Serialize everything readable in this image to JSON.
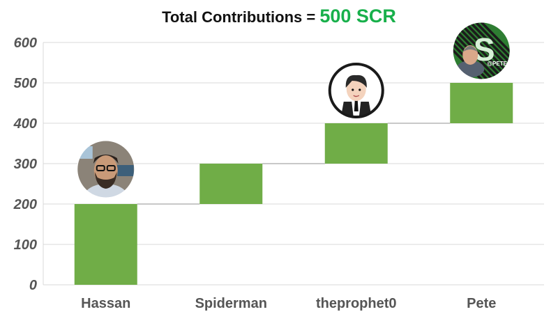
{
  "chart_data": {
    "type": "bar",
    "subtype": "waterfall",
    "title_prefix": "Total Contributions = ",
    "title_value": "500 SCR",
    "categories": [
      "Hassan",
      "Spiderman",
      "theprophet0",
      "Pete"
    ],
    "values": [
      200,
      100,
      100,
      100
    ],
    "ylim": [
      0,
      600
    ],
    "yticks": [
      0,
      100,
      200,
      300,
      400,
      500,
      600
    ],
    "grid": true,
    "colors": {
      "bar": "#70ad47",
      "grid": "#d9d9d9",
      "connector": "#a6a6a6",
      "accent": "#18b04b"
    },
    "avatars": [
      {
        "category": "Hassan",
        "icon": "bearded-man-with-glasses-avatar-icon"
      },
      {
        "category": "theprophet0",
        "icon": "cartoon-man-in-suit-avatar-icon"
      },
      {
        "category": "Pete",
        "icon": "man-with-green-logo-background-avatar-icon",
        "badge_text": "@PETE"
      }
    ]
  }
}
